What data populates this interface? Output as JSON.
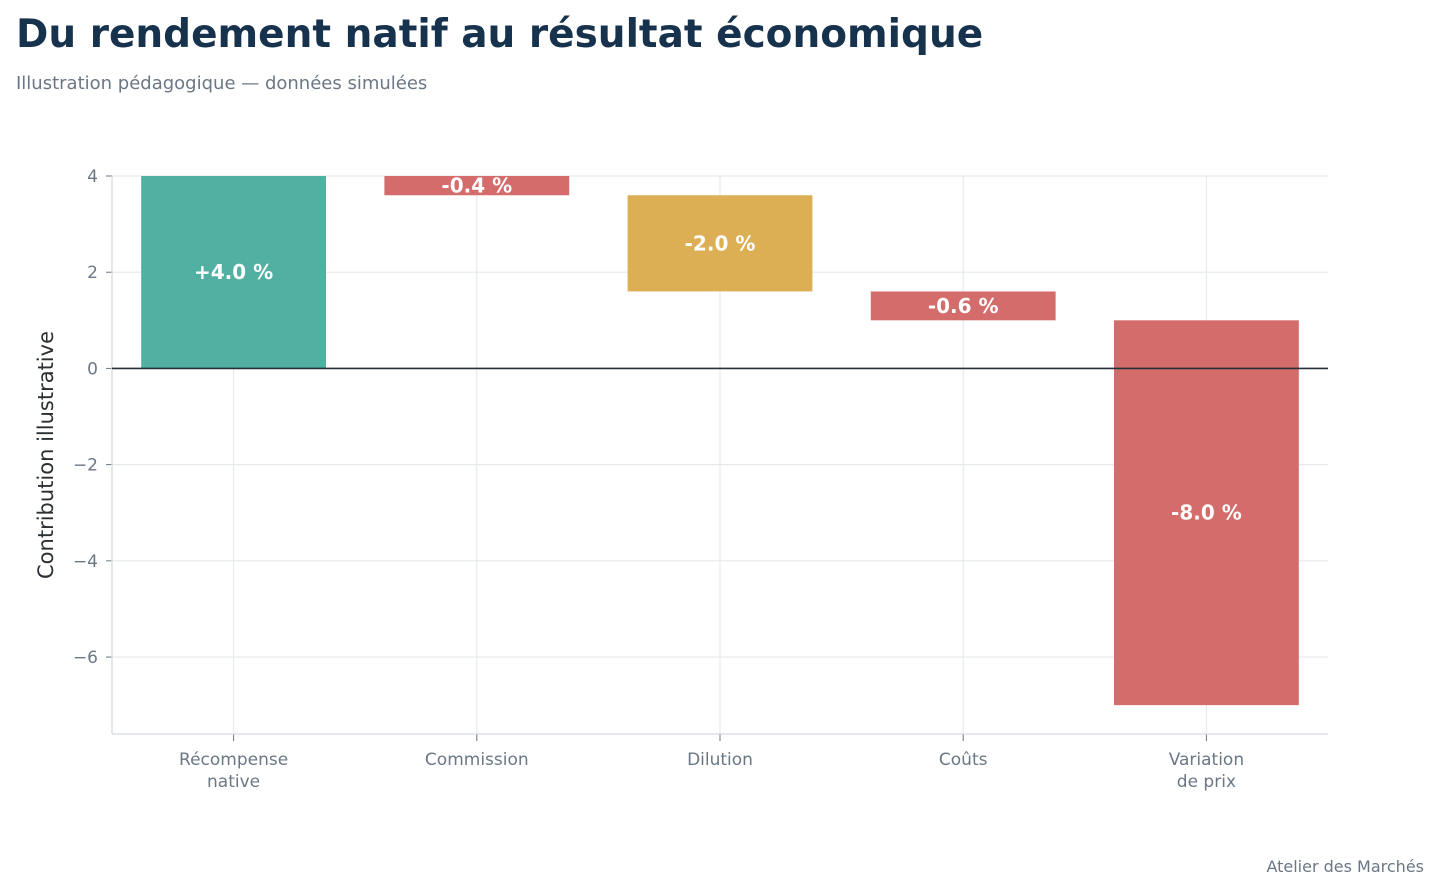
{
  "header": {
    "title": "Du rendement natif au résultat économique",
    "subtitle": "Illustration pédagogique — données simulées"
  },
  "footer": {
    "source": "Atelier des Marchés"
  },
  "chart_data": {
    "type": "bar",
    "subtype": "waterfall",
    "categories": [
      [
        "Récompense",
        "native"
      ],
      [
        "Commission"
      ],
      [
        "Dilution"
      ],
      [
        "Coûts"
      ],
      [
        "Variation",
        "de prix"
      ]
    ],
    "values": [
      4.0,
      -0.4,
      -2.0,
      -0.6,
      -8.0
    ],
    "bar_labels": [
      "+4.0 %",
      "-0.4 %",
      "-2.0 %",
      "-0.6 %",
      "-8.0 %"
    ],
    "colors": [
      "#52b0a3",
      "#d36c6b",
      "#dcaf55",
      "#d36c6b",
      "#d36c6b"
    ],
    "ylabel": "Contribution illustrative",
    "xlabel": "",
    "ylim": [
      -7.6,
      4.0
    ],
    "yticks": [
      4,
      2,
      0,
      -2,
      -4,
      -6
    ],
    "ytick_labels": [
      "4",
      "2",
      "0",
      "−2",
      "−4",
      "−6"
    ],
    "grid": true,
    "zero_line": true
  }
}
